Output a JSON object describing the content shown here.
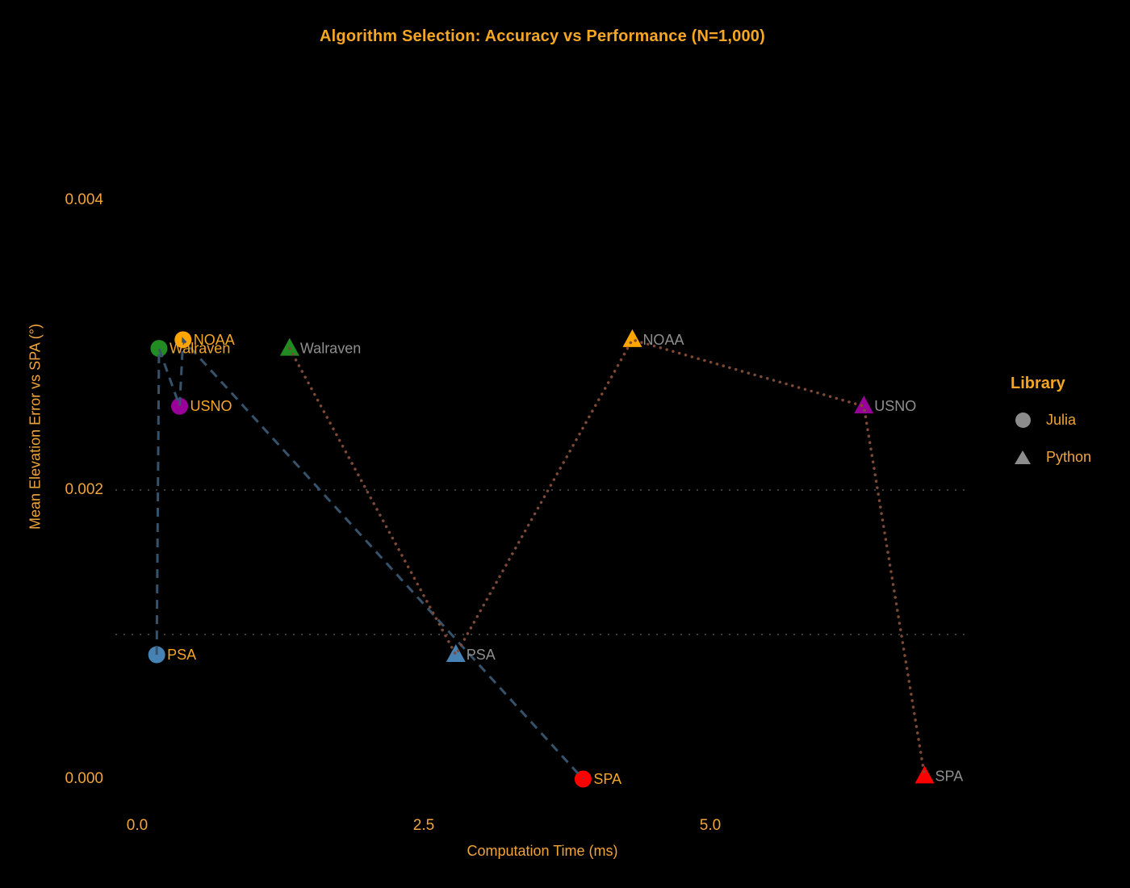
{
  "title": "Algorithm Selection: Accuracy vs Performance (N=1,000)",
  "legend": {
    "title": "Library",
    "items": [
      {
        "label": "Julia",
        "marker": "circle-icon",
        "marker_color": "#8C8C8C"
      },
      {
        "label": "Python",
        "marker": "triangle-icon",
        "marker_color": "#8C8C8C"
      }
    ]
  },
  "chart_data": {
    "type": "scatter",
    "title": "Algorithm Selection: Accuracy vs Performance (N=1,000)",
    "xlabel": "Computation Time (ms)",
    "ylabel": "Mean Elevation Error vs SPA (°)",
    "x_axis": {
      "min": 0.0,
      "max": 7.2,
      "ticks": [
        0.0,
        2.5,
        5.0
      ],
      "tick_labels": [
        "0.0",
        "2.5",
        "5.0"
      ]
    },
    "y_axis": {
      "min": 0.0,
      "max": 0.004,
      "ticks": [
        0.0,
        0.002,
        0.004
      ],
      "tick_labels": [
        "0.000",
        "0.002",
        "0.004"
      ]
    },
    "grid": "horizontal dotted reference lines only",
    "reference_lines_y": [
      0.001,
      0.002
    ],
    "reference_line_color": "#3D3D3D",
    "legend_position": "right",
    "background_color": "#000000",
    "text_color": "#F0A43C",
    "series": [
      {
        "name": "Julia",
        "marker": "circle",
        "line_style": "dashed",
        "line_color": "#36536B",
        "label_color": "#F5A623",
        "points": [
          {
            "algorithm": "PSA",
            "x": 0.17,
            "y": 0.00086,
            "color": "#4682B4"
          },
          {
            "algorithm": "Walraven",
            "x": 0.19,
            "y": 0.00298,
            "color": "#228B22"
          },
          {
            "algorithm": "USNO",
            "x": 0.37,
            "y": 0.00258,
            "color": "#990099"
          },
          {
            "algorithm": "NOAA",
            "x": 0.4,
            "y": 0.00304,
            "color": "#FFA500"
          },
          {
            "algorithm": "SPA",
            "x": 3.89,
            "y": 0.0,
            "color": "#FF0000"
          }
        ]
      },
      {
        "name": "Python",
        "marker": "triangle",
        "line_style": "dotted",
        "line_color": "#7E4936",
        "label_color": "#8F8F8F",
        "points": [
          {
            "algorithm": "Walraven",
            "x": 1.33,
            "y": 0.00298,
            "color": "#228B22"
          },
          {
            "algorithm": "PSA",
            "x": 2.78,
            "y": 0.00086,
            "color": "#4682B4"
          },
          {
            "algorithm": "NOAA",
            "x": 4.32,
            "y": 0.00304,
            "color": "#FFA500"
          },
          {
            "algorithm": "USNO",
            "x": 6.34,
            "y": 0.00258,
            "color": "#990099"
          },
          {
            "algorithm": "SPA",
            "x": 6.87,
            "y": 2e-05,
            "color": "#FF0000"
          }
        ]
      }
    ]
  }
}
